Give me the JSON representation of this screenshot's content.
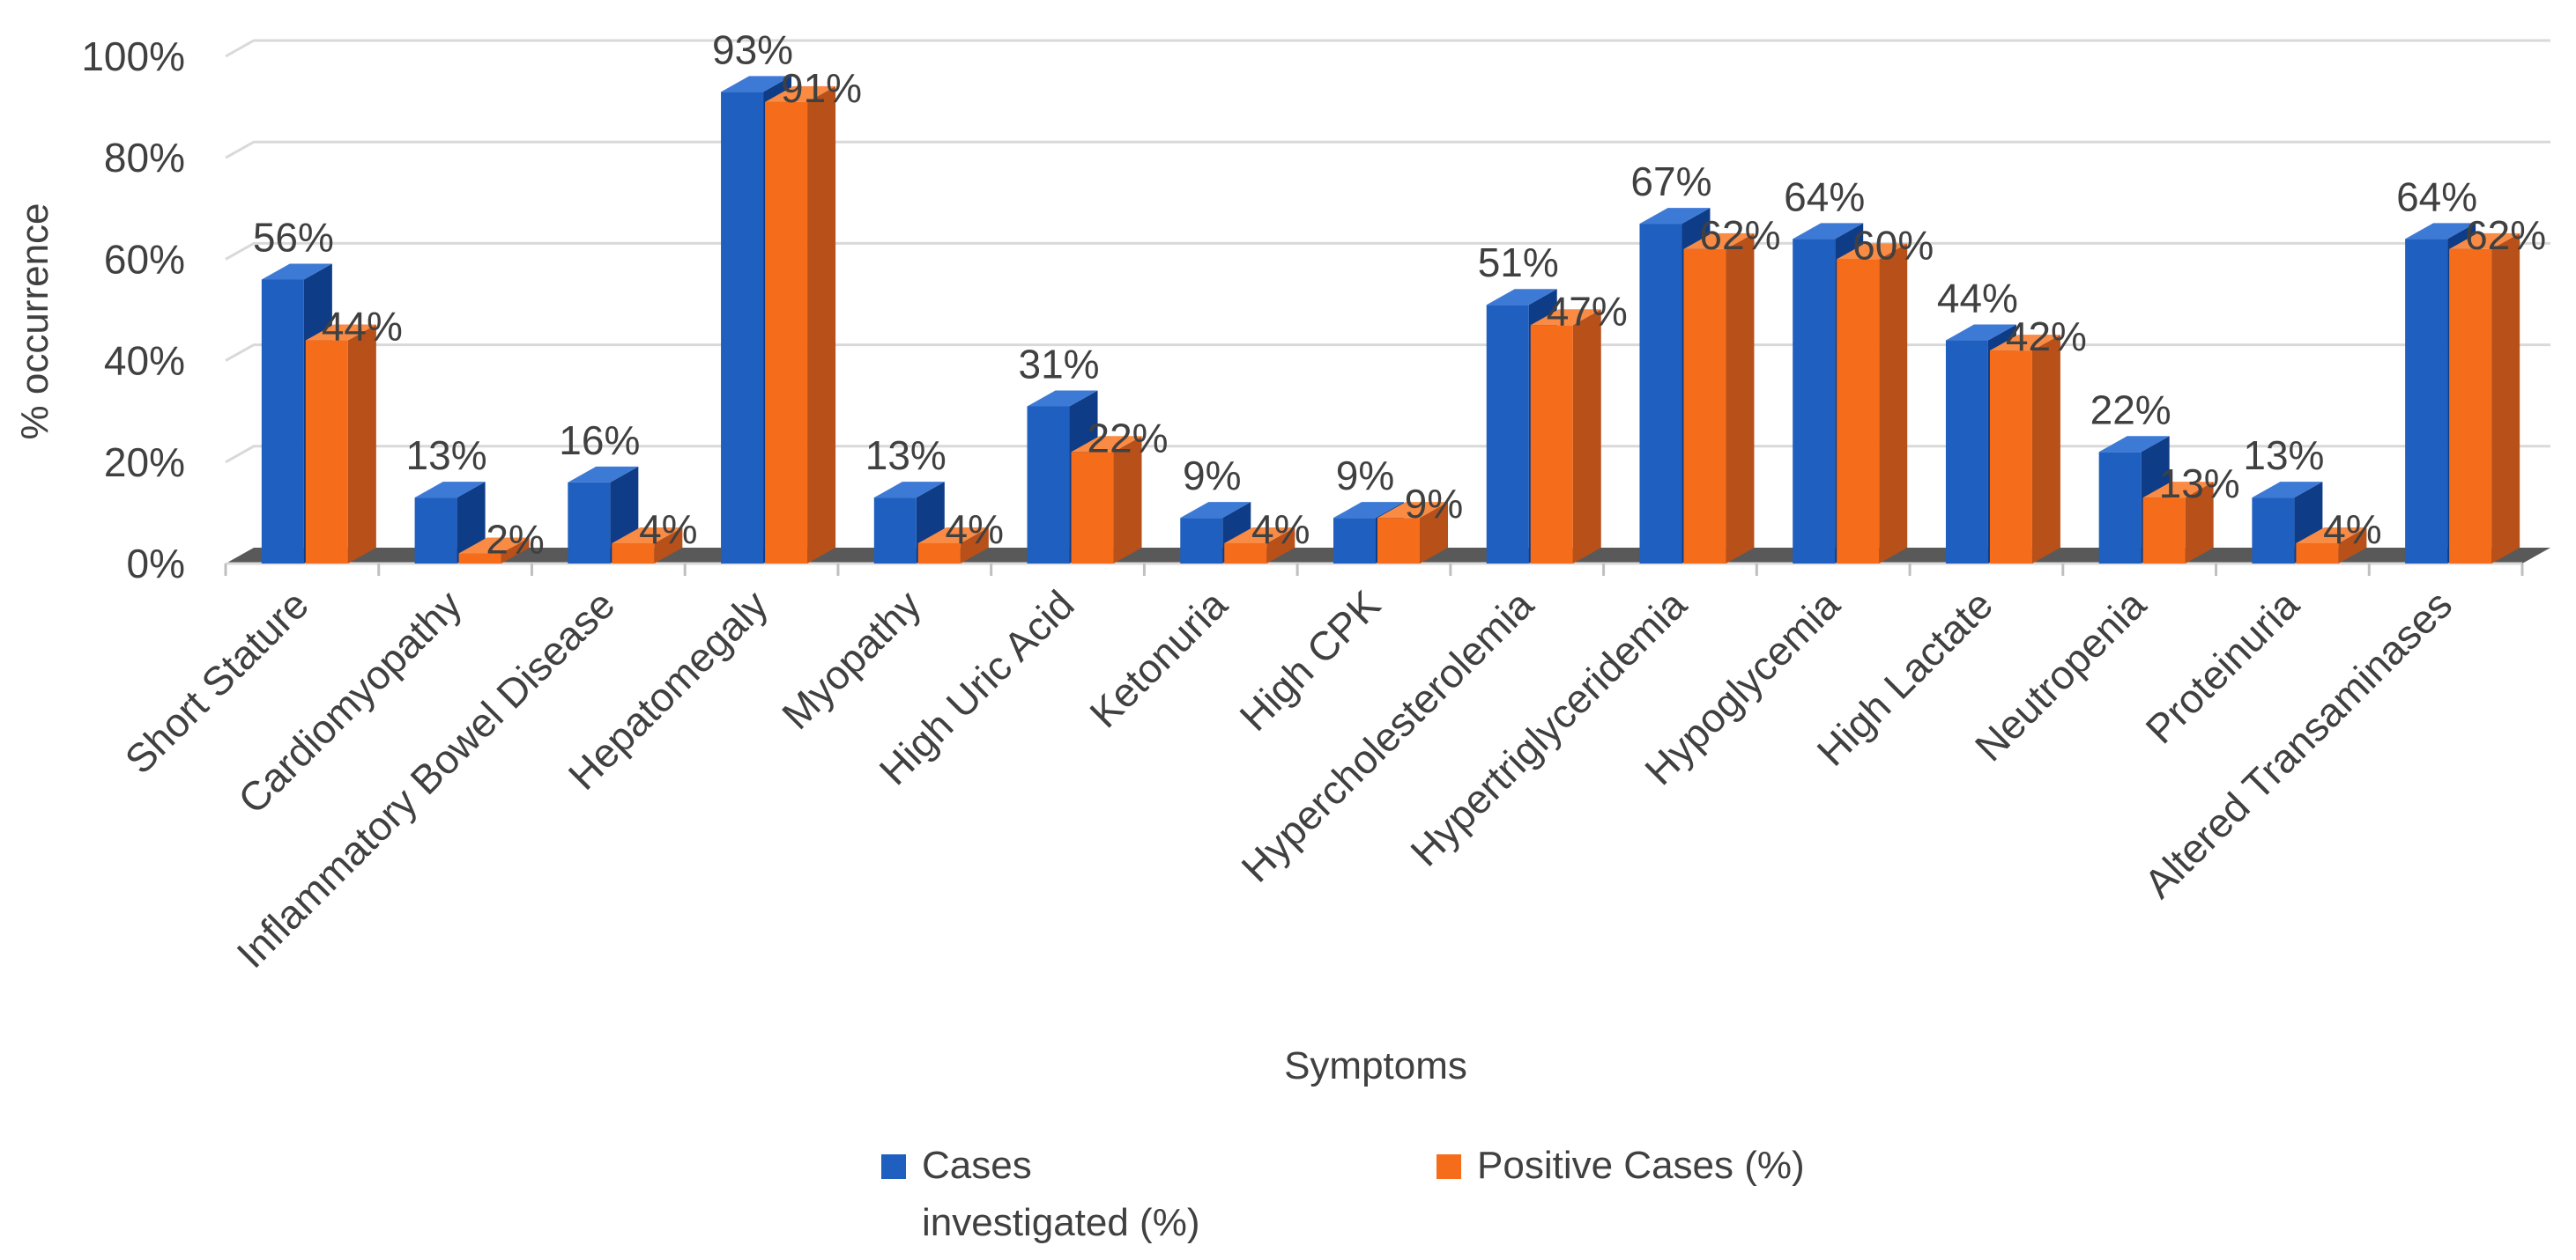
{
  "chart_data": {
    "type": "bar",
    "title": "",
    "xlabel": "Symptoms",
    "ylabel": "% occurrence",
    "ylim": [
      0,
      100
    ],
    "yticks": [
      "0%",
      "20%",
      "40%",
      "60%",
      "80%",
      "100%"
    ],
    "ytick_values": [
      0,
      20,
      40,
      60,
      80,
      100
    ],
    "grid": true,
    "legend_position": "bottom",
    "categories": [
      "Short Stature",
      "Cardiomyopathy",
      "Inflammatory Bowel Disease",
      "Hepatomegaly",
      "Myopathy",
      "High Uric Acid",
      "Ketonuria",
      "High CPK",
      "Hypercholesterolemia",
      "Hypertriglyceridemia",
      "Hypoglycemia",
      "High Lactate",
      "Neutropenia",
      "Proteinuria",
      "Altered Transaminases"
    ],
    "series": [
      {
        "name": "Cases investigated (%)",
        "legend_lines": [
          "Cases",
          "investigated (%)"
        ],
        "color": "#1f5fbf",
        "values": [
          56,
          13,
          16,
          93,
          13,
          31,
          9,
          9,
          51,
          67,
          64,
          44,
          22,
          13,
          64
        ],
        "labels": [
          "56%",
          "13%",
          "16%",
          "93%",
          "13%",
          "31%",
          "9%",
          "9%",
          "51%",
          "67%",
          "64%",
          "44%",
          "22%",
          "13%",
          "64%"
        ]
      },
      {
        "name": "Positive Cases (%)",
        "legend_lines": [
          "Positive Cases (%)"
        ],
        "color": "#f56c1a",
        "values": [
          44,
          2,
          4,
          91,
          4,
          22,
          4,
          9,
          47,
          62,
          60,
          42,
          13,
          4,
          62
        ],
        "labels": [
          "44%",
          "2%",
          "4%",
          "91%",
          "4%",
          "22%",
          "4%",
          "9%",
          "47%",
          "62%",
          "60%",
          "42%",
          "13%",
          "4%",
          "62%"
        ]
      }
    ]
  },
  "colors": {
    "blue_front": "#1f5fbf",
    "blue_side": "#0f3c86",
    "blue_top": "#3d7ad6",
    "orange_front": "#f56c1a",
    "orange_side": "#b8501a",
    "orange_top": "#f98b45",
    "floor": "#595959",
    "grid": "#d9d9d9",
    "text": "#404040"
  }
}
